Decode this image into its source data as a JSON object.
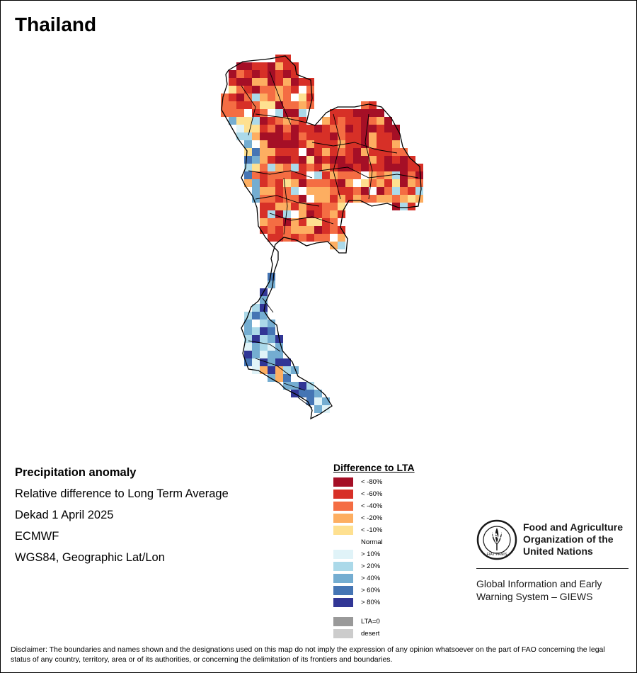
{
  "map": {
    "title": "Thailand",
    "info": {
      "heading": "Precipitation anomaly",
      "subtitle": "Relative difference to Long Term Average",
      "period": "Dekad 1 April 2025",
      "source": "ECMWF",
      "projection": "WGS84, Geographic Lat/Lon"
    },
    "legend": {
      "title": "Difference to LTA",
      "items": [
        {
          "label": "< -80%",
          "color": "#a50f26"
        },
        {
          "label": "< -60%",
          "color": "#d73027"
        },
        {
          "label": "< -40%",
          "color": "#f46d43"
        },
        {
          "label": "< -20%",
          "color": "#fdae61"
        },
        {
          "label": "< -10%",
          "color": "#fee090"
        },
        {
          "label": "Normal",
          "color": "#ffffff"
        },
        {
          "label": "> 10%",
          "color": "#e0f3f8"
        },
        {
          "label": "> 20%",
          "color": "#abd9e9"
        },
        {
          "label": "> 40%",
          "color": "#74add1"
        },
        {
          "label": "> 60%",
          "color": "#4575b4"
        },
        {
          "label": "> 80%",
          "color": "#313695"
        }
      ],
      "extra": [
        {
          "label": "LTA=0",
          "color": "#999999"
        },
        {
          "label": "desert",
          "color": "#cccccc"
        }
      ]
    },
    "organization": {
      "name_line1": "Food and Agriculture",
      "name_line2": "Organization of the",
      "name_line3": "United Nations",
      "system_line1": "Global Information and Early",
      "system_line2": "Warning System – GIEWS",
      "logo_text": "FAO",
      "logo_motto": "FIAT PANIS"
    },
    "disclaimer": "Disclaimer: The boundaries and names shown and the designations used on this map do not imply the expression of any opinion whatsoever on the part of FAO concerning the legal status of any country, territory, area or of its authorities, or concerning the delimitation of its frontiers and boundaries."
  }
}
